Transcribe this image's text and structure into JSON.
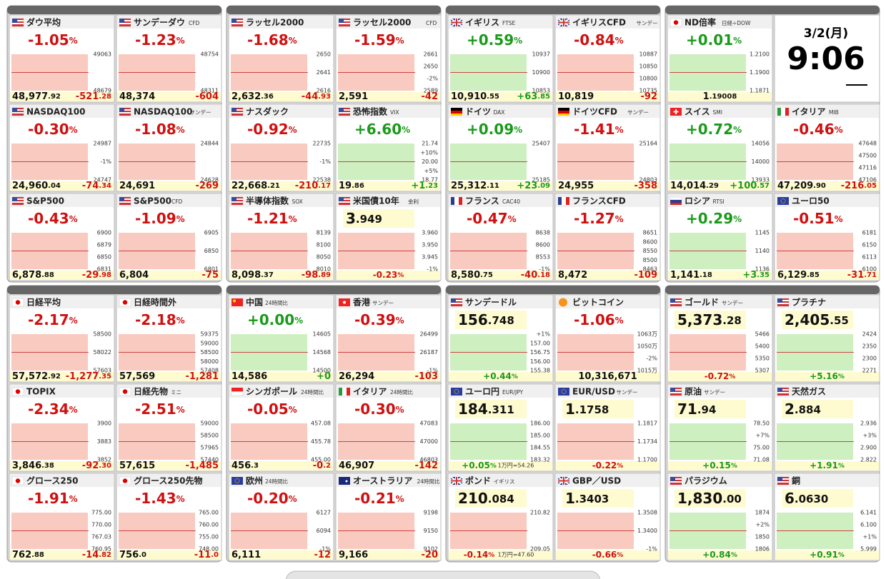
{
  "clock": {
    "date": "3/2(月)",
    "time": "9:06"
  },
  "groups": [
    {
      "tiles": [
        {
          "flag": "us",
          "name": "ダウ平均",
          "change": "-1.05%",
          "price": "48,977.92",
          "diff": "-521.28",
          "axis": [
            "49063",
            "48679"
          ]
        },
        {
          "flag": "us",
          "name": "サンデーダウ",
          "sub": "CFD",
          "change": "-1.23%",
          "price": "48,374",
          "diff": "-604",
          "axis": [
            "48754",
            "48311"
          ]
        },
        {
          "flag": "us",
          "name": "NASDAQ100",
          "change": "-0.30%",
          "price": "24,960.04",
          "diff": "-74.34",
          "axis": [
            "24987",
            "-1%",
            "24747"
          ]
        },
        {
          "flag": "us",
          "name": "NASDAQ100",
          "sub": "サンデー",
          "change": "-1.08%",
          "price": "24,691",
          "diff": "-269",
          "axis": [
            "24844",
            "24628"
          ]
        },
        {
          "flag": "us",
          "name": "S&P500",
          "change": "-0.43%",
          "price": "6,878.88",
          "diff": "-29.98",
          "axis": [
            "6900",
            "6879",
            "6850",
            "6831"
          ]
        },
        {
          "flag": "us",
          "name": "S&P500",
          "sub": "CFD",
          "change": "-1.09%",
          "price": "6,804",
          "diff": "-75",
          "axis": [
            "6905",
            "6850",
            "6801"
          ]
        }
      ]
    },
    {
      "tiles": [
        {
          "flag": "us",
          "name": "ラッセル2000",
          "change": "-1.68%",
          "price": "2,632.36",
          "diff": "-44.93",
          "axis": [
            "2650",
            "2641",
            "2616"
          ]
        },
        {
          "flag": "us",
          "name": "ラッセル2000",
          "sub": "CFD",
          "change": "-1.59%",
          "price": "2,591",
          "diff": "-42",
          "axis": [
            "2661",
            "2650",
            "-2%",
            "2589"
          ]
        },
        {
          "flag": "us",
          "name": "ナスダック",
          "change": "-0.92%",
          "price": "22,668.21",
          "diff": "-210.17",
          "axis": [
            "22735",
            "-1%",
            "22538"
          ]
        },
        {
          "flag": "us",
          "name": "恐怖指数",
          "sub": "VIX",
          "change": "+6.60%",
          "price": "19.86",
          "diff": "+1.23",
          "axis": [
            "21.74",
            "+10%",
            "20.00",
            "+5%",
            "18.77"
          ]
        },
        {
          "flag": "us",
          "name": "半導体指数",
          "sub": "SOX",
          "change": "-1.21%",
          "price": "8,098.37",
          "diff": "-98.89",
          "axis": [
            "8139",
            "8100",
            "8050",
            "8010"
          ]
        },
        {
          "flag": "us",
          "name": "米国債10年",
          "sub": "金利",
          "price_top": true,
          "price": "3.949",
          "change": "-0.23%",
          "axis": [
            "3.960",
            "3.950",
            "3.945",
            "-1%"
          ]
        }
      ]
    },
    {
      "tiles": [
        {
          "flag": "uk",
          "name": "イギリス",
          "sub": "FTSE",
          "change": "+0.59%",
          "price": "10,910.55",
          "diff": "+63.85",
          "axis": [
            "10937",
            "10900",
            "10853"
          ]
        },
        {
          "flag": "uk",
          "name": "イギリスCFD",
          "sub": "サンデー",
          "change": "-0.84%",
          "price": "10,819",
          "diff": "-92",
          "axis": [
            "10887",
            "10850",
            "10800",
            "10735"
          ]
        },
        {
          "flag": "de",
          "name": "ドイツ",
          "sub": "DAX",
          "change": "+0.09%",
          "price": "25,312.11",
          "diff": "+23.09",
          "axis": [
            "25407",
            "25185"
          ]
        },
        {
          "flag": "de",
          "name": "ドイツCFD",
          "sub": "サンデー",
          "change": "-1.41%",
          "price": "24,955",
          "diff": "-358",
          "axis": [
            "25164",
            "24803"
          ]
        },
        {
          "flag": "fr",
          "name": "フランス",
          "sub": "CAC40",
          "change": "-0.47%",
          "price": "8,580.75",
          "diff": "-40.18",
          "axis": [
            "8638",
            "8600",
            "8553",
            "-1%"
          ]
        },
        {
          "flag": "fr",
          "name": "フランスCFD",
          "change": "-1.27%",
          "price": "8,472",
          "diff": "-109",
          "axis": [
            "8651",
            "8600",
            "8550",
            "8500",
            "8463"
          ]
        }
      ]
    },
    {
      "tiles": [
        {
          "flag": "jp",
          "name": "ND倍率",
          "sub": "日経÷DOW",
          "change": "+0.01%",
          "price": "1.19008",
          "axis": [
            "1.2100",
            "1.1900",
            "1.1871"
          ]
        },
        {
          "clock": true
        },
        {
          "flag": "ch",
          "name": "スイス",
          "sub": "SMI",
          "change": "+0.72%",
          "price": "14,014.29",
          "diff": "+100.57",
          "axis": [
            "14056",
            "14000",
            "13933"
          ]
        },
        {
          "flag": "it",
          "name": "イタリア",
          "sub": "MIB",
          "change": "-0.46%",
          "price": "47,209.90",
          "diff": "-216.05",
          "axis": [
            "47648",
            "47500",
            "47116",
            "47106"
          ]
        },
        {
          "flag": "ru",
          "name": "ロシア",
          "sub": "RTSI",
          "change": "+0.29%",
          "price": "1,141.18",
          "diff": "+3.35",
          "axis": [
            "1145",
            "1140",
            "1136"
          ]
        },
        {
          "flag": "eu",
          "name": "ユーロ50",
          "change": "-0.51%",
          "price": "6,129.85",
          "diff": "-31.71",
          "axis": [
            "6181",
            "6150",
            "6113",
            "6100"
          ]
        }
      ]
    },
    {
      "tiles": [
        {
          "flag": "jp",
          "name": "日経平均",
          "change": "-2.17%",
          "price": "57,572.92",
          "diff": "-1,277.35",
          "axis": [
            "58500",
            "58022",
            "57603"
          ]
        },
        {
          "flag": "jp",
          "name": "日経時間外",
          "change": "-2.18%",
          "price": "57,569",
          "diff": "-1,281",
          "axis": [
            "59375",
            "59000",
            "58500",
            "58000",
            "57408"
          ]
        },
        {
          "flag": "jp",
          "name": "TOPIX",
          "change": "-2.34%",
          "price": "3,846.38",
          "diff": "-92.30",
          "axis": [
            "3900",
            "3883",
            "3852"
          ]
        },
        {
          "flag": "jp",
          "name": "日経先物",
          "sub": "ミニ",
          "change": "-2.51%",
          "price": "57,615",
          "diff": "-1,485",
          "axis": [
            "59000",
            "58500",
            "57965",
            "57440"
          ]
        },
        {
          "flag": "jp",
          "name": "グロース250",
          "change": "-1.91%",
          "price": "762.88",
          "diff": "-14.82",
          "axis": [
            "775.00",
            "770.00",
            "767.03",
            "760.95"
          ]
        },
        {
          "flag": "jp",
          "name": "グロース250先物",
          "change": "-1.43%",
          "price": "756.0",
          "diff": "-11.0",
          "axis": [
            "765.00",
            "760.00",
            "755.00",
            "748.00"
          ]
        }
      ]
    },
    {
      "tiles": [
        {
          "flag": "cn",
          "name": "中国",
          "sub": "24時間比",
          "change": "+0.00%",
          "price": "14,586",
          "diff": "+0",
          "axis": [
            "14605",
            "14568",
            "14500"
          ]
        },
        {
          "flag": "hk",
          "name": "香港",
          "sub": "サンデー",
          "change": "-0.39%",
          "price": "26,294",
          "diff": "-103",
          "axis": [
            "26499",
            "26187",
            "-1%"
          ]
        },
        {
          "flag": "sg",
          "name": "シンガポール",
          "sub": "24時間比",
          "change": "-0.05%",
          "price": "456.3",
          "diff": "-0.2",
          "axis": [
            "457.08",
            "455.78",
            "455.00"
          ]
        },
        {
          "flag": "it",
          "name": "イタリア",
          "sub": "24時間比",
          "change": "-0.30%",
          "price": "46,907",
          "diff": "-142",
          "axis": [
            "47083",
            "47000",
            "46803"
          ]
        },
        {
          "flag": "eu",
          "name": "欧州",
          "sub": "24時間比",
          "change": "-0.20%",
          "price": "6,111",
          "diff": "-12",
          "axis": [
            "6127",
            "6094",
            "-1%"
          ]
        },
        {
          "flag": "au",
          "name": "オーストラリア",
          "sub": "24時間比",
          "change": "-0.21%",
          "price": "9,166",
          "diff": "-20",
          "axis": [
            "9198",
            "9150",
            "9102"
          ]
        }
      ]
    },
    {
      "tiles": [
        {
          "flag": "us",
          "name": "サンデードル",
          "price_top": true,
          "price": "156.748",
          "change": "+0.44%",
          "axis": [
            "+1%",
            "157.00",
            "156.75",
            "156.00",
            "155.38"
          ]
        },
        {
          "flag": "btc",
          "name": "ビットコイン",
          "change": "-1.06%",
          "price": "10,316,671",
          "axis": [
            "1063万",
            "1050万",
            "-2%",
            "1015万"
          ]
        },
        {
          "flag": "eu",
          "name": "ユーロ円",
          "sub": "EUR/JPY",
          "price_top": true,
          "price": "184.311",
          "change": "+0.05%",
          "note": "1万円=54.26",
          "axis": [
            "186.00",
            "185.00",
            "184.55",
            "183.32"
          ]
        },
        {
          "flag": "eu",
          "name": "EUR/USD",
          "sub": "サンデー",
          "price_top": true,
          "price": "1.1758",
          "change": "-0.22%",
          "axis": [
            "1.1817",
            "1.1734",
            "1.1700"
          ]
        },
        {
          "flag": "uk",
          "name": "ポンド",
          "sub": "イギリス",
          "price_top": true,
          "price": "210.084",
          "change": "-0.14%",
          "note": "1万円=47.60",
          "axis": [
            "210.82",
            "209.05"
          ]
        },
        {
          "flag": "uk",
          "name": "GBP／USD",
          "price_top": true,
          "price": "1.3403",
          "change": "-0.66%",
          "axis": [
            "1.3508",
            "1.3400",
            "-1%"
          ]
        }
      ]
    },
    {
      "tiles": [
        {
          "flag": "us",
          "name": "ゴールド",
          "sub": "サンデー",
          "price_top": true,
          "price": "5,373.28",
          "change": "-0.72%",
          "axis": [
            "5466",
            "5400",
            "5350",
            "5307"
          ]
        },
        {
          "flag": "us",
          "name": "プラチナ",
          "price_top": true,
          "price": "2,405.55",
          "change": "+5.16%",
          "axis": [
            "2424",
            "2350",
            "2300",
            "2271"
          ]
        },
        {
          "flag": "us",
          "name": "原油",
          "sub": "サンデー",
          "price_top": true,
          "price": "71.94",
          "change": "+0.15%",
          "axis": [
            "78.50",
            "+7%",
            "75.00",
            "71.08"
          ]
        },
        {
          "flag": "us",
          "name": "天然ガス",
          "price_top": true,
          "price": "2.884",
          "change": "+1.91%",
          "axis": [
            "2.936",
            "+3%",
            "2.900",
            "2.822"
          ]
        },
        {
          "flag": "us",
          "name": "パラジウム",
          "price_top": true,
          "price": "1,830.00",
          "change": "+0.84%",
          "axis": [
            "1874",
            "+2%",
            "1850",
            "1806"
          ]
        },
        {
          "flag": "us",
          "name": "銅",
          "price_top": true,
          "price": "6.0630",
          "change": "+0.91%",
          "axis": [
            "6.141",
            "6.100",
            "+1%",
            "5.999"
          ]
        }
      ]
    }
  ]
}
